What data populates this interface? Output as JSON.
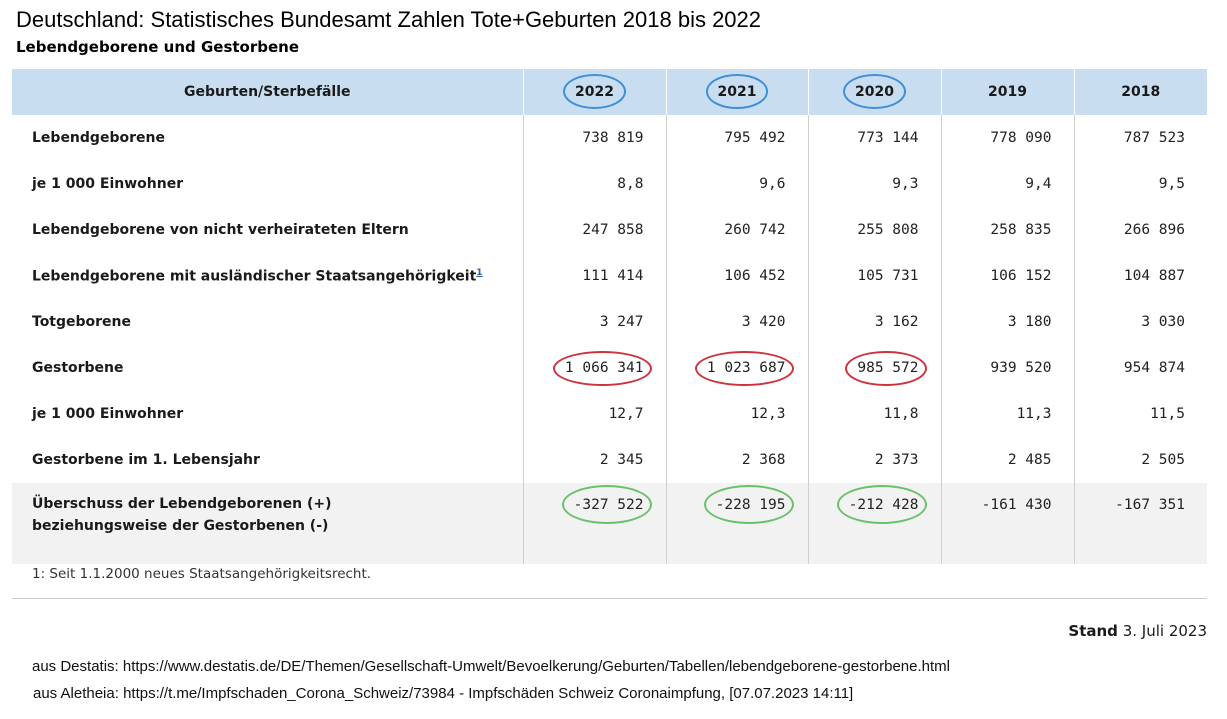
{
  "title": "Deutschland: Statistisches Bundesamt Zahlen Tote+Geburten 2018 bis 2022",
  "subtitle": "Lebendgeborene und Gestorbene",
  "table": {
    "headers": [
      "Geburten/Sterbefälle",
      "2022",
      "2021",
      "2020",
      "2019",
      "2018"
    ],
    "circled_header_years": [
      "2022",
      "2021",
      "2020"
    ],
    "rows": [
      {
        "label": "Lebendgeborene",
        "values": [
          "738 819",
          "795 492",
          "773 144",
          "778 090",
          "787 523"
        ]
      },
      {
        "label": "je 1 000 Einwohner",
        "values": [
          "8,8",
          "9,6",
          "9,3",
          "9,4",
          "9,5"
        ]
      },
      {
        "label": "Lebendgeborene von nicht verheirateten Eltern",
        "values": [
          "247 858",
          "260 742",
          "255 808",
          "258 835",
          "266 896"
        ]
      },
      {
        "label": "Lebendgeborene mit ausländischer Staatsangehörigkeit",
        "footnote_ref": "1",
        "values": [
          "111 414",
          "106 452",
          "105 731",
          "106 152",
          "104 887"
        ]
      },
      {
        "label": "Totgeborene",
        "values": [
          "3 247",
          "3 420",
          "3 162",
          "3 180",
          "3 030"
        ]
      },
      {
        "label": "Gestorbene",
        "values": [
          "1 066 341",
          "1 023 687",
          "985 572",
          "939 520",
          "954 874"
        ],
        "circled": "red"
      },
      {
        "label": "je 1 000 Einwohner",
        "values": [
          "12,7",
          "12,3",
          "11,8",
          "11,3",
          "11,5"
        ]
      },
      {
        "label": "Gestorbene im 1. Lebensjahr",
        "values": [
          "2 345",
          "2 368",
          "2 373",
          "2 485",
          "2 505"
        ]
      },
      {
        "label_line1": "Überschuss der Lebendgeborenen (+)",
        "label_line2": "beziehungsweise der Gestorbenen (-)",
        "values": [
          "-327 522",
          "-228 195",
          "-212 428",
          "-161 430",
          "-167 351"
        ],
        "circled": "green"
      }
    ]
  },
  "footnote": "1: Seit 1.1.2000 neues Staatsangehörigkeitsrecht.",
  "stand": {
    "label": "Stand",
    "date": "3. Juli 2023"
  },
  "sources": [
    "aus Destatis: https://www.destatis.de/DE/Themen/Gesellschaft-Umwelt/Bevoelkerung/Geburten/Tabellen/lebendgeborene-gestorbene.html",
    "aus Aletheia: https://t.me/Impfschaden_Corona_Schweiz/73984 - Impfschäden Schweiz Coronaimpfung, [07.07.2023 14:11]"
  ],
  "colors": {
    "header_bg": "#c8ddf0",
    "highlight_row_bg": "#f2f2f2",
    "circle_blue": "#3d8fdc",
    "circle_red": "#d0313f",
    "circle_green": "#6cc06c"
  }
}
